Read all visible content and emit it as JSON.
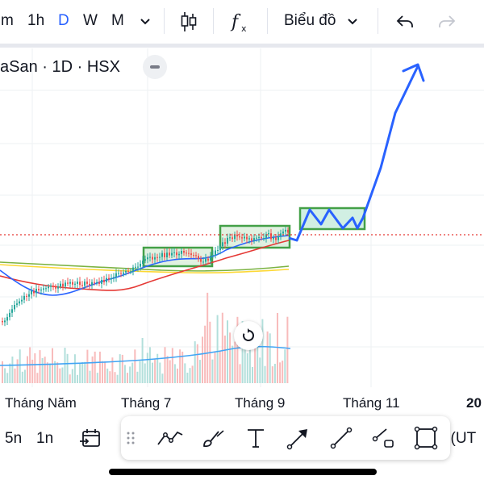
{
  "toolbar": {
    "intervals": [
      {
        "label": "m",
        "active": false
      },
      {
        "label": "1h",
        "active": false
      },
      {
        "label": "D",
        "active": true
      },
      {
        "label": "W",
        "active": false
      },
      {
        "label": "M",
        "active": false
      }
    ],
    "more_intervals_icon": "chevron-down-icon",
    "candles_icon": "candlestick-icon",
    "indicators_icon": "fx-icon",
    "chart_type_label": "Biểu đồ",
    "undo_icon": "undo-icon",
    "redo_icon": "redo-icon"
  },
  "legend": {
    "symbol_text": "aSan · 1D · HSX"
  },
  "x_axis": {
    "labels": [
      "Tháng Năm",
      "Tháng 7",
      "Tháng 9",
      "Tháng 11",
      "20"
    ]
  },
  "bottom_bar": {
    "ranges": [
      "5n",
      "1n"
    ],
    "goto_date_icon": "calendar-goto-icon",
    "timezone_text": "; (UT"
  },
  "drawing_tools": [
    {
      "name": "drag-handle-icon"
    },
    {
      "name": "trend-lines-icon"
    },
    {
      "name": "brush-icon"
    },
    {
      "name": "text-tool-icon"
    },
    {
      "name": "arrow-tool-icon"
    },
    {
      "name": "line-tool-icon"
    },
    {
      "name": "ray-tool-icon"
    },
    {
      "name": "rectangle-tool-icon"
    }
  ],
  "colors": {
    "active_interval": "#2962ff",
    "drawing_line": "#2962ff",
    "box_border": "#43a047",
    "box_fill": "#c8e6c9",
    "ma_fast": "#2962ff",
    "ma_mid": "#e53935",
    "ma_slow_green": "#7cb342",
    "ma_slow_yellow": "#fdd835",
    "up_candle": "#26a69a",
    "down_candle": "#ef5350",
    "price_line": "#e53935"
  }
}
